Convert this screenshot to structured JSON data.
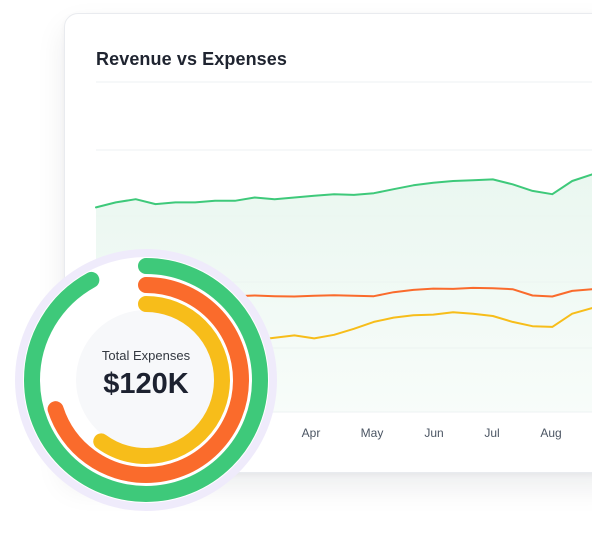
{
  "card": {
    "title": "Revenue vs Expenses"
  },
  "colors": {
    "green": "#3ec97a",
    "orange": "#fa6b2c",
    "yellow": "#f7bd1a",
    "area_fill": "#eaf7f0",
    "halo": "#efebfb",
    "grid": "#eef0f3"
  },
  "chart_data": {
    "type": "line",
    "title": "Revenue vs Expenses",
    "x_ticks": [
      "Apr",
      "May",
      "Jun",
      "Jul",
      "Aug"
    ],
    "x": [
      0,
      1,
      2,
      3,
      4,
      5,
      6,
      7,
      8,
      9,
      10,
      11,
      12,
      13,
      14,
      15,
      16,
      17,
      18,
      19,
      20,
      21,
      22,
      23,
      24,
      25
    ],
    "ylim": [
      0,
      100
    ],
    "grid": true,
    "series": [
      {
        "color_key": "green",
        "values": [
          62,
          63.5,
          64.5,
          63,
          63.5,
          63.5,
          64,
          64,
          65,
          64.5,
          65,
          65.5,
          66,
          65.8,
          66.3,
          67.5,
          68.7,
          69.5,
          70,
          70.2,
          70.5,
          69,
          67,
          66,
          70,
          72
        ]
      },
      {
        "color_key": "orange",
        "values": [
          34.5,
          34.5,
          35,
          34.5,
          34.7,
          35,
          34.8,
          35.1,
          35.3,
          35.1,
          35,
          35.2,
          35.4,
          35.2,
          35.1,
          36.3,
          37,
          37.4,
          37.3,
          37.6,
          37.5,
          37.2,
          35.3,
          35,
          36.7,
          37.2
        ]
      },
      {
        "color_key": "yellow",
        "values": [
          21,
          19.5,
          18.4,
          20,
          19.5,
          21,
          22,
          21,
          21.8,
          22.5,
          23.2,
          22.3,
          23.4,
          25.2,
          27.3,
          28.6,
          29.3,
          29.5,
          30.2,
          29.8,
          29.1,
          27.3,
          26,
          25.8,
          29.8,
          31.5
        ]
      }
    ],
    "donut": {
      "label": "Total Expenses",
      "value": "$120K",
      "rings": [
        {
          "color_key": "green",
          "fraction": 0.92
        },
        {
          "color_key": "orange",
          "fraction": 0.7
        },
        {
          "color_key": "yellow",
          "fraction": 0.6
        }
      ]
    }
  }
}
